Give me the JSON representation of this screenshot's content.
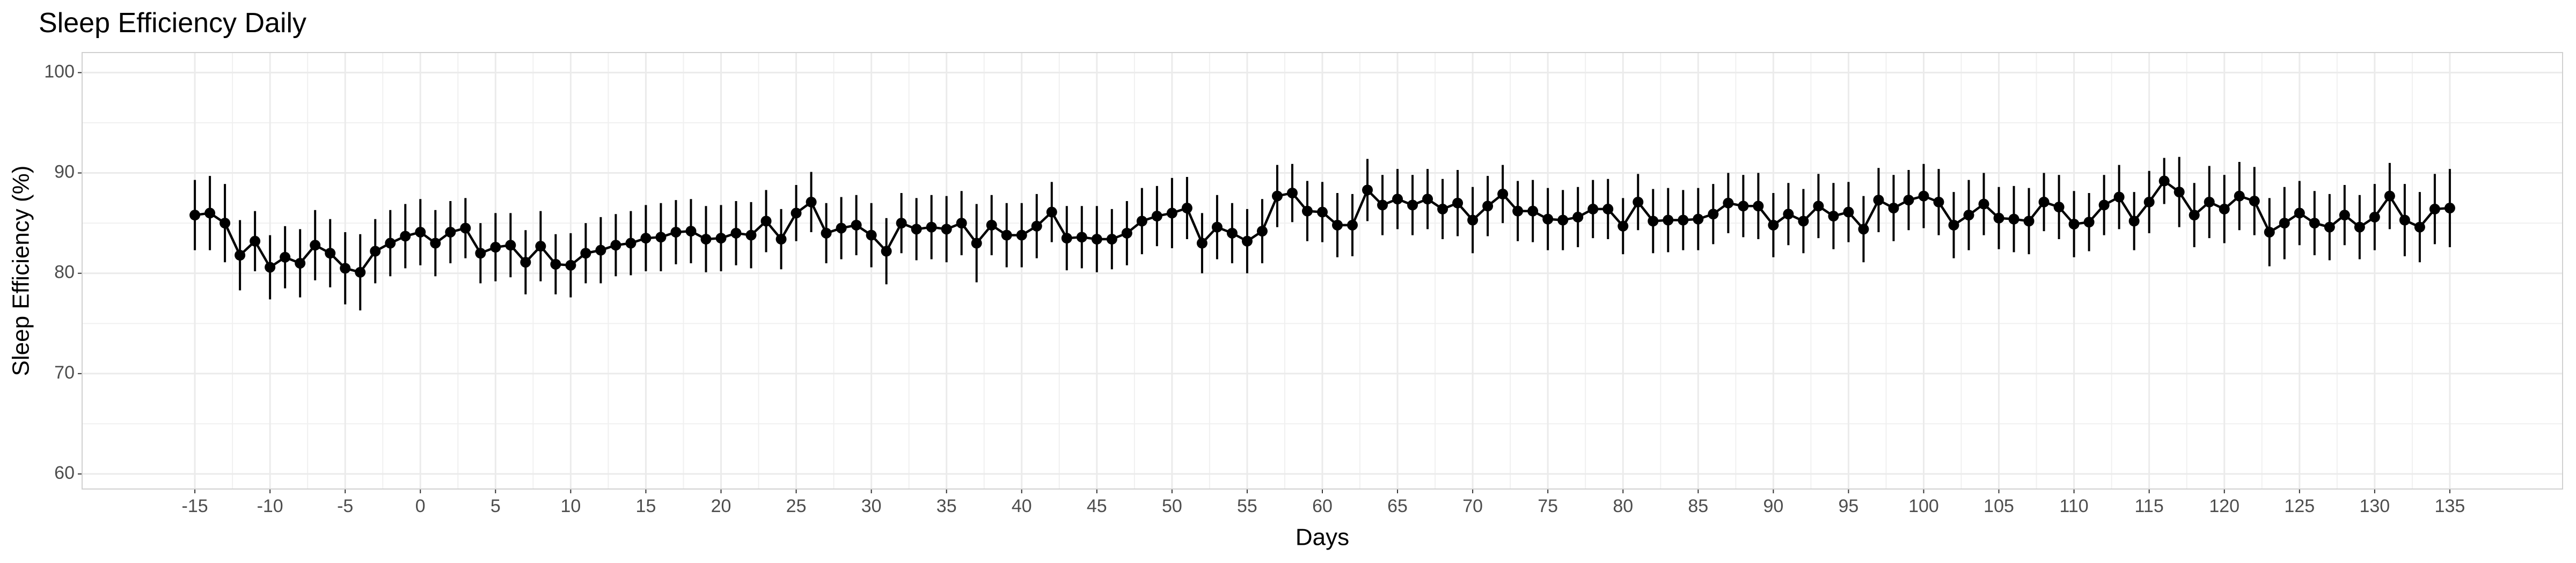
{
  "chart_data": {
    "type": "errorbar-line",
    "title": "Sleep Efficiency Daily",
    "x_label": "Days",
    "y_label": "Sleep Efficiency (%)",
    "x": [
      -15,
      -14,
      -13,
      -12,
      -11,
      -10,
      -9,
      -8,
      -7,
      -6,
      -5,
      -4,
      -3,
      -2,
      -1,
      0,
      1,
      2,
      3,
      4,
      5,
      6,
      7,
      8,
      9,
      10,
      11,
      12,
      13,
      14,
      15,
      16,
      17,
      18,
      19,
      20,
      21,
      22,
      23,
      24,
      25,
      26,
      27,
      28,
      29,
      30,
      31,
      32,
      33,
      34,
      35,
      36,
      37,
      38,
      39,
      40,
      41,
      42,
      43,
      44,
      45,
      46,
      47,
      48,
      49,
      50,
      51,
      52,
      53,
      54,
      55,
      56,
      57,
      58,
      59,
      60,
      61,
      62,
      63,
      64,
      65,
      66,
      67,
      68,
      69,
      70,
      71,
      72,
      73,
      74,
      75,
      76,
      77,
      78,
      79,
      80,
      81,
      82,
      83,
      84,
      85,
      86,
      87,
      88,
      89,
      90,
      91,
      92,
      93,
      94,
      95,
      96,
      97,
      98,
      99,
      100,
      101,
      102,
      103,
      104,
      105,
      106,
      107,
      108,
      109,
      110,
      111,
      112,
      113,
      114,
      115,
      116,
      117,
      118,
      119,
      120,
      121,
      122,
      123,
      124,
      125,
      126,
      127,
      128,
      129,
      130,
      131,
      132,
      133,
      134,
      135
    ],
    "series": [
      {
        "name": "Sleep Efficiency",
        "color": "#000000",
        "values": [
          85.8,
          86.0,
          85.0,
          81.8,
          83.2,
          80.6,
          81.6,
          81.0,
          82.8,
          82.0,
          80.5,
          80.1,
          82.2,
          83.0,
          83.7,
          84.1,
          83.0,
          84.1,
          84.5,
          82.0,
          82.6,
          82.8,
          81.1,
          82.7,
          80.9,
          80.8,
          82.0,
          82.3,
          82.8,
          83.0,
          83.5,
          83.6,
          84.1,
          84.2,
          83.4,
          83.5,
          84.0,
          83.8,
          85.2,
          83.4,
          86.0,
          87.1,
          84.0,
          84.5,
          84.8,
          83.8,
          82.2,
          85.0,
          84.4,
          84.6,
          84.4,
          85.0,
          83.0,
          84.8,
          83.8,
          83.8,
          84.7,
          86.1,
          83.5,
          83.6,
          83.4,
          83.4,
          84.0,
          85.2,
          85.7,
          86.0,
          86.5,
          83.0,
          84.6,
          84.0,
          83.2,
          84.2,
          87.7,
          88.0,
          86.2,
          86.1,
          84.8,
          84.8,
          88.3,
          86.8,
          87.4,
          86.8,
          87.4,
          86.4,
          87.0,
          85.3,
          86.7,
          87.9,
          86.2,
          86.2,
          85.4,
          85.3,
          85.6,
          86.4,
          86.4,
          84.7,
          87.1,
          85.2,
          85.3,
          85.3,
          85.4,
          85.9,
          87.0,
          86.7,
          86.7,
          84.8,
          85.9,
          85.2,
          86.7,
          85.7,
          86.1,
          84.4,
          87.3,
          86.5,
          87.3,
          87.7,
          87.1,
          84.8,
          85.8,
          86.9,
          85.5,
          85.4,
          85.2,
          87.1,
          86.6,
          84.9,
          85.1,
          86.8,
          87.6,
          85.2,
          87.1,
          89.2,
          88.1,
          85.8,
          87.1,
          86.4,
          87.7,
          87.2,
          84.1,
          85.0,
          86.0,
          85.0,
          84.6,
          85.8,
          84.6,
          85.6,
          87.7,
          85.3,
          84.6,
          86.4,
          86.5
        ],
        "errors": [
          3.5,
          3.7,
          3.9,
          3.5,
          3.0,
          3.2,
          3.1,
          3.4,
          3.5,
          3.4,
          3.6,
          3.8,
          3.2,
          3.3,
          3.2,
          3.3,
          3.3,
          3.1,
          3.0,
          3.0,
          3.4,
          3.2,
          3.2,
          3.5,
          3.0,
          3.2,
          3.0,
          3.3,
          3.1,
          3.2,
          3.3,
          3.4,
          3.2,
          3.2,
          3.3,
          3.3,
          3.2,
          3.3,
          3.1,
          3.0,
          2.8,
          3.0,
          3.0,
          3.1,
          3.0,
          3.2,
          3.3,
          3.0,
          3.1,
          3.2,
          3.3,
          3.2,
          3.9,
          3.0,
          3.2,
          3.2,
          3.2,
          3.0,
          3.2,
          3.1,
          3.3,
          3.0,
          3.2,
          3.3,
          3.0,
          3.5,
          3.1,
          3.0,
          3.2,
          3.0,
          3.2,
          3.2,
          3.1,
          2.9,
          3.0,
          3.0,
          3.2,
          3.1,
          3.1,
          3.0,
          3.0,
          3.0,
          3.0,
          3.0,
          3.3,
          3.3,
          3.0,
          2.9,
          3.0,
          3.1,
          3.1,
          3.0,
          3.0,
          2.9,
          3.0,
          2.8,
          2.8,
          3.2,
          3.2,
          3.0,
          3.1,
          3.0,
          3.0,
          3.1,
          3.3,
          3.2,
          3.1,
          3.2,
          3.2,
          3.3,
          3.0,
          3.3,
          3.2,
          3.3,
          3.0,
          3.2,
          3.3,
          3.3,
          3.5,
          3.1,
          3.1,
          3.3,
          3.3,
          2.9,
          3.2,
          3.3,
          2.9,
          3.0,
          3.2,
          2.9,
          3.1,
          2.3,
          3.5,
          3.2,
          3.6,
          3.4,
          3.4,
          3.4,
          3.4,
          3.6,
          3.2,
          3.2,
          3.3,
          3.0,
          3.2,
          3.3,
          3.3,
          3.6,
          3.5,
          3.5,
          3.9
        ]
      }
    ],
    "xlim": [
      -22.5,
      142.5
    ],
    "ylim": [
      58.5,
      102
    ],
    "xticks": [
      -15,
      -10,
      -5,
      0,
      5,
      10,
      15,
      20,
      25,
      30,
      35,
      40,
      45,
      50,
      55,
      60,
      65,
      70,
      75,
      80,
      85,
      90,
      95,
      100,
      105,
      110,
      115,
      120,
      125,
      130,
      135
    ],
    "yticks": [
      60,
      70,
      80,
      90,
      100
    ],
    "grid": true
  }
}
